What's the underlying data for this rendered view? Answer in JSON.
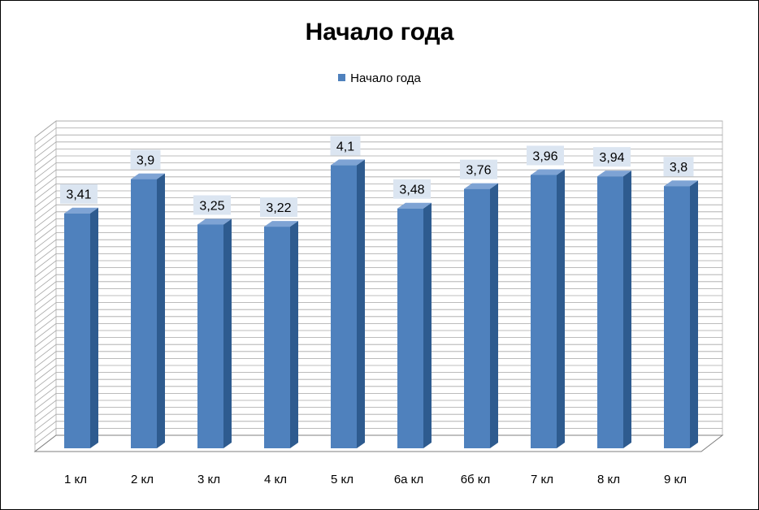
{
  "chart_data": {
    "type": "bar",
    "title": "Начало года",
    "categories": [
      "1 кл",
      "2 кл",
      "3 кл",
      "4 кл",
      "5 кл",
      "6а кл",
      "6б кл",
      "7 кл",
      "8 кл",
      "9 кл"
    ],
    "series": [
      {
        "name": "Начало года",
        "values": [
          3.41,
          3.9,
          3.25,
          3.22,
          4.1,
          3.48,
          3.76,
          3.96,
          3.94,
          3.8
        ],
        "labels": [
          "3,41",
          "3,9",
          "3,25",
          "3,22",
          "4,1",
          "3,48",
          "3,76",
          "3,96",
          "3,94",
          "3,8"
        ]
      }
    ],
    "xlabel": "",
    "ylabel": "",
    "ylim": [
      0,
      4.5
    ],
    "grid": true,
    "legend_position": "top",
    "style": "3d-column",
    "colors": {
      "bar_front": "#4f81bd",
      "bar_side": "#2e5b8f",
      "bar_top": "#7ea3d4",
      "gridline": "#a6a6a6",
      "label_background": "#dbe5f1"
    }
  }
}
